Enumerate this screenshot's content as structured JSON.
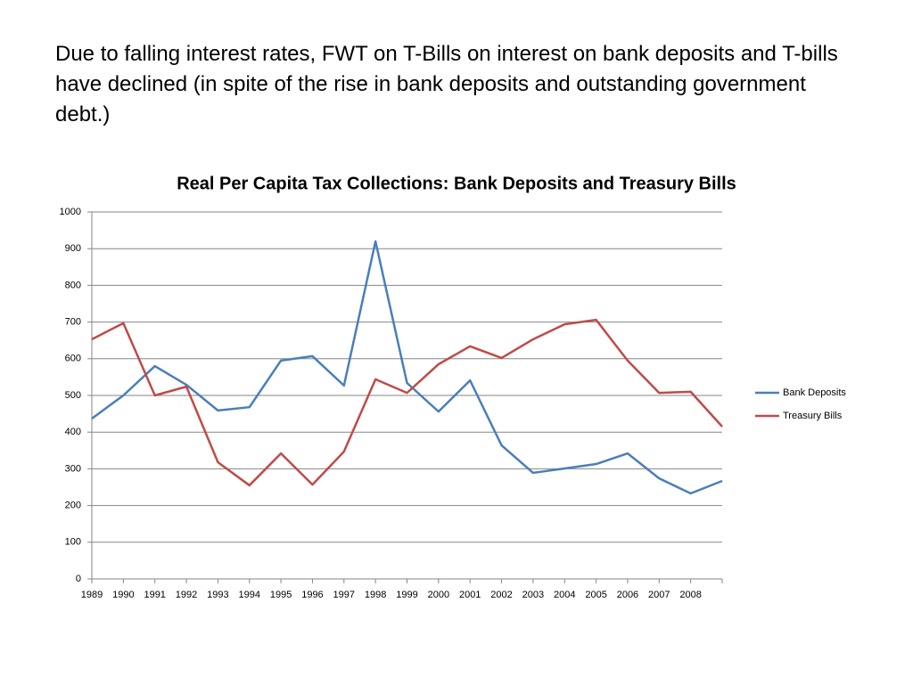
{
  "heading": "Due to falling interest rates, FWT on T-Bills on interest on bank deposits and T-bills have declined (in spite of the rise in bank deposits and outstanding government debt.)",
  "chart_data": {
    "type": "line",
    "title": "Real Per Capita Tax Collections: Bank Deposits and Treasury Bills",
    "categories": [
      "1989",
      "1990",
      "1991",
      "1992",
      "1993",
      "1994",
      "1995",
      "1996",
      "1997",
      "1998",
      "1999",
      "2000",
      "2001",
      "2002",
      "2003",
      "2004",
      "2005",
      "2006",
      "2007",
      "2008",
      null
    ],
    "series": [
      {
        "name": "Bank Deposits",
        "color": "#4a7ebb",
        "values": [
          437,
          500,
          580,
          529,
          459,
          468,
          595,
          607,
          527,
          920,
          534,
          456,
          541,
          364,
          289,
          301,
          313,
          342,
          274,
          233,
          267
        ]
      },
      {
        "name": "Treasury Bills",
        "color": "#be4b48",
        "values": [
          653,
          697,
          500,
          524,
          318,
          255,
          342,
          257,
          347,
          544,
          507,
          585,
          634,
          602,
          653,
          694,
          706,
          595,
          507,
          510,
          415
        ]
      }
    ],
    "ylim": [
      0,
      1000
    ],
    "yticks": [
      0,
      100,
      200,
      300,
      400,
      500,
      600,
      700,
      800,
      900,
      1000
    ],
    "grid": true,
    "legend": "right"
  }
}
